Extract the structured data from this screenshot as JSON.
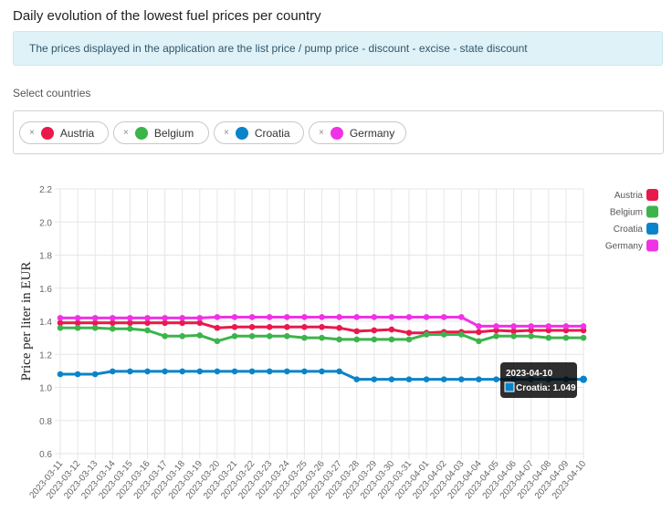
{
  "page": {
    "title": "Daily evolution of the lowest fuel prices per country",
    "alert": "The prices displayed in the application are the list price / pump price - discount - excise - state discount",
    "select_label": "Select countries",
    "remove_glyph": "×"
  },
  "chips": [
    {
      "label": "Austria",
      "color": "#e8194c"
    },
    {
      "label": "Belgium",
      "color": "#3cb44b"
    },
    {
      "label": "Croatia",
      "color": "#0a84c9"
    },
    {
      "label": "Germany",
      "color": "#f032e6"
    }
  ],
  "tooltip": {
    "title": "2023-04-10",
    "label": "Croatia: 1.049",
    "color": "#0a84c9"
  },
  "chart_data": {
    "type": "line",
    "title": "",
    "xlabel": "",
    "ylabel": "Price per liter in EUR",
    "ylim": [
      0.6,
      2.2
    ],
    "yticks": [
      "0.6",
      "0.8",
      "1.0",
      "1.2",
      "1.4",
      "1.6",
      "1.8",
      "2.0",
      "2.2"
    ],
    "grid": true,
    "legend_position": "top-right",
    "x": [
      "2023-03-11",
      "2023-03-12",
      "2023-03-13",
      "2023-03-14",
      "2023-03-15",
      "2023-03-16",
      "2023-03-17",
      "2023-03-18",
      "2023-03-19",
      "2023-03-20",
      "2023-03-21",
      "2023-03-22",
      "2023-03-23",
      "2023-03-24",
      "2023-03-25",
      "2023-03-26",
      "2023-03-27",
      "2023-03-28",
      "2023-03-29",
      "2023-03-30",
      "2023-03-31",
      "2023-04-01",
      "2023-04-02",
      "2023-04-03",
      "2023-04-04",
      "2023-04-05",
      "2023-04-06",
      "2023-04-07",
      "2023-04-08",
      "2023-04-09",
      "2023-04-10"
    ],
    "series": [
      {
        "name": "Austria",
        "color": "#e8194c",
        "values": [
          1.39,
          1.39,
          1.39,
          1.39,
          1.39,
          1.39,
          1.39,
          1.39,
          1.39,
          1.36,
          1.365,
          1.365,
          1.365,
          1.365,
          1.365,
          1.365,
          1.36,
          1.34,
          1.345,
          1.35,
          1.33,
          1.33,
          1.335,
          1.335,
          1.335,
          1.345,
          1.34,
          1.345,
          1.345,
          1.345,
          1.345
        ]
      },
      {
        "name": "Belgium",
        "color": "#3cb44b",
        "values": [
          1.36,
          1.36,
          1.36,
          1.355,
          1.355,
          1.345,
          1.31,
          1.31,
          1.315,
          1.28,
          1.31,
          1.31,
          1.31,
          1.31,
          1.3,
          1.3,
          1.29,
          1.29,
          1.29,
          1.29,
          1.29,
          1.32,
          1.32,
          1.32,
          1.28,
          1.31,
          1.31,
          1.31,
          1.3,
          1.3,
          1.3
        ]
      },
      {
        "name": "Croatia",
        "color": "#0a84c9",
        "values": [
          1.08,
          1.08,
          1.08,
          1.097,
          1.097,
          1.097,
          1.097,
          1.097,
          1.097,
          1.097,
          1.097,
          1.097,
          1.097,
          1.097,
          1.097,
          1.097,
          1.097,
          1.049,
          1.049,
          1.049,
          1.049,
          1.049,
          1.049,
          1.049,
          1.049,
          1.049,
          1.049,
          1.049,
          1.049,
          1.049,
          1.049
        ]
      },
      {
        "name": "Germany",
        "color": "#f032e6",
        "values": [
          1.42,
          1.42,
          1.42,
          1.42,
          1.42,
          1.42,
          1.42,
          1.42,
          1.42,
          1.425,
          1.425,
          1.425,
          1.425,
          1.425,
          1.425,
          1.425,
          1.425,
          1.425,
          1.425,
          1.425,
          1.425,
          1.425,
          1.425,
          1.425,
          1.37,
          1.37,
          1.37,
          1.37,
          1.37,
          1.37,
          1.37
        ]
      }
    ]
  }
}
